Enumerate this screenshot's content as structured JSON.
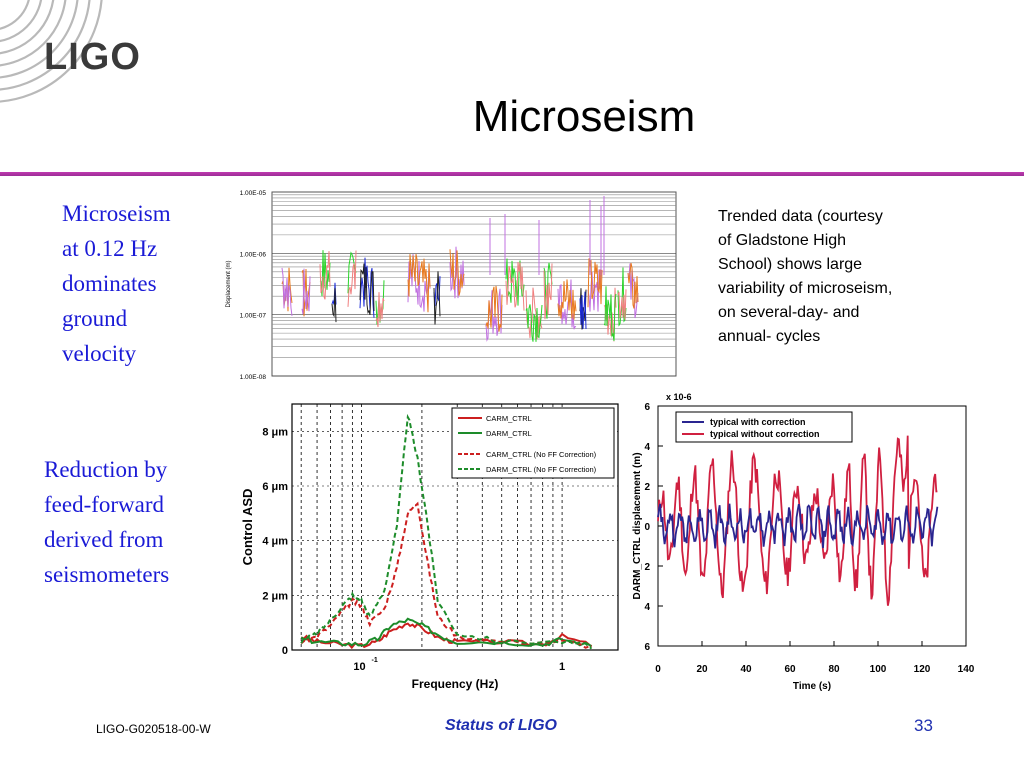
{
  "slide": {
    "logo": "LIGO",
    "title": "Microseism",
    "left_text_1": [
      "Microseism",
      "at 0.12 Hz",
      "dominates",
      "ground",
      "velocity"
    ],
    "left_text_2": [
      "Reduction by",
      "feed-forward",
      "derived from",
      "seismometers"
    ],
    "note": [
      "Trended data (courtesy",
      "of Gladstone High",
      "School) shows large",
      "variability of microseism,",
      "on several-day- and",
      "annual- cycles"
    ],
    "footer_left": "LIGO-G020518-00-W",
    "footer_mid": "Status of LIGO",
    "page_number": "33",
    "accent_color": "#b0309f",
    "text_blue": "#1a1ad6"
  },
  "chart_data": [
    {
      "type": "line",
      "ylabel": "Displacement (m)",
      "yscale": "log",
      "y_ticks": [
        "1.00E-05",
        "1.00E-06",
        "1.00E-07",
        "1.00E-08"
      ],
      "ylim": [
        1e-08,
        1e-05
      ],
      "series_colors": [
        "#e87a1e",
        "#2ad42a",
        "#1a2ad6",
        "#c070e0",
        "#f08080",
        "#202020"
      ],
      "note": "trended daily microseism displacement"
    },
    {
      "type": "line",
      "xlabel": "Frequency (Hz)",
      "ylabel": "Control ASD",
      "xscale": "log",
      "x_ticks": [
        "10",
        "1"
      ],
      "x_tick_sup": "-1",
      "y_ticks": [
        "0",
        "2 μm",
        "4 μm",
        "6 μm",
        "8 μm"
      ],
      "ylim": [
        0,
        9
      ],
      "series": [
        {
          "name": "CARM_CTRL",
          "color": "#cc1f1f",
          "dash": false,
          "x": [
            0.05,
            0.06,
            0.08,
            0.1,
            0.12,
            0.14,
            0.17,
            0.2,
            0.25,
            0.3,
            0.5,
            0.8,
            1.0,
            1.5
          ],
          "y": [
            0.5,
            0.3,
            0.2,
            0.15,
            0.3,
            0.7,
            1.0,
            0.8,
            0.4,
            0.3,
            0.3,
            0.2,
            0.5,
            0.1
          ]
        },
        {
          "name": "DARM_CTRL",
          "color": "#1d8c2a",
          "dash": false,
          "x": [
            0.05,
            0.06,
            0.08,
            0.1,
            0.12,
            0.14,
            0.17,
            0.2,
            0.25,
            0.3,
            0.5,
            0.8,
            1.0,
            1.5
          ],
          "y": [
            0.4,
            0.3,
            0.25,
            0.2,
            0.4,
            0.9,
            1.1,
            0.9,
            0.5,
            0.3,
            0.3,
            0.2,
            0.4,
            0.1
          ]
        },
        {
          "name": "CARM_CTRL (No FF Correction)",
          "color": "#cc1f1f",
          "dash": true,
          "x": [
            0.05,
            0.06,
            0.07,
            0.08,
            0.09,
            0.1,
            0.11,
            0.13,
            0.15,
            0.17,
            0.19,
            0.21,
            0.24,
            0.3,
            0.5,
            1.0,
            1.5
          ],
          "y": [
            0.3,
            0.5,
            0.9,
            1.4,
            1.8,
            1.6,
            1.0,
            1.5,
            3.0,
            5.0,
            5.4,
            3.5,
            1.2,
            0.5,
            0.3,
            0.3,
            0.1
          ]
        },
        {
          "name": "DARM_CTRL (No FF Correction)",
          "color": "#1d8c2a",
          "dash": true,
          "x": [
            0.05,
            0.06,
            0.07,
            0.08,
            0.09,
            0.1,
            0.11,
            0.13,
            0.15,
            0.17,
            0.19,
            0.21,
            0.24,
            0.3,
            0.5,
            1.0,
            1.5
          ],
          "y": [
            0.3,
            0.6,
            1.1,
            1.6,
            2.0,
            1.8,
            1.2,
            2.2,
            4.5,
            8.6,
            7.0,
            5.0,
            1.8,
            0.6,
            0.3,
            0.3,
            0.1
          ]
        }
      ]
    },
    {
      "type": "line",
      "xlabel": "Time (s)",
      "ylabel": "DARM_CTRL displacement (m)",
      "y_exponent": "x 10-6",
      "x_ticks": [
        0,
        20,
        40,
        60,
        80,
        100,
        120,
        140
      ],
      "y_ticks": [
        "6",
        "4",
        "2",
        "0",
        "2",
        "4",
        "6"
      ],
      "xlim": [
        0,
        140
      ],
      "ylim": [
        -6,
        6
      ],
      "series": [
        {
          "name": "typical with correction",
          "color": "#2a2590",
          "amplitude": 0.7
        },
        {
          "name": "typical without correction",
          "color": "#d02040",
          "amplitude": 3.0
        }
      ]
    }
  ]
}
